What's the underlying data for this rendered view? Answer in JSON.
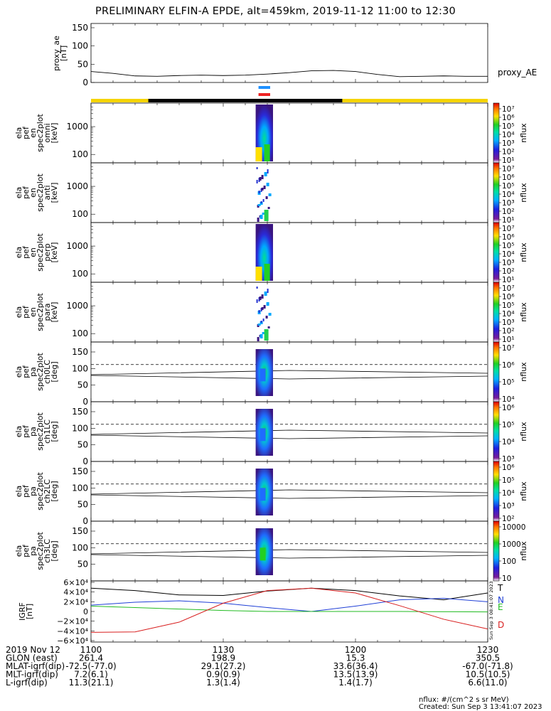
{
  "title": "PRELIMINARY ELFIN-A EPDE, alt=459km, 2019-11-12 11:00 to 12:30",
  "ae_panel": {
    "ylabel": [
      "proxy_ae",
      "[nT]"
    ],
    "legend": "proxy_AE",
    "yticks": [
      "150",
      "100",
      "50",
      "0"
    ]
  },
  "status_bars": {
    "top_colors": [
      "#1e90ff",
      "#ee2222"
    ],
    "track_colors": [
      "#f5d400",
      "#000000"
    ]
  },
  "energy_panels": [
    {
      "ylabel": [
        "ela",
        "pef",
        "en",
        "spec2plot",
        "omni",
        "[keV]"
      ],
      "yticks": [
        "1000",
        "100"
      ],
      "colorbar_ticks": [
        "10⁷",
        "10⁶",
        "10⁵",
        "10⁴",
        "10³",
        "10²",
        "10¹"
      ],
      "zlabel": "nflux"
    },
    {
      "ylabel": [
        "ela",
        "pef",
        "en",
        "spec2plot",
        "anti",
        "[keV]"
      ],
      "yticks": [
        "1000",
        "100"
      ],
      "colorbar_ticks": [
        "10⁷",
        "10⁶",
        "10⁵",
        "10⁴",
        "10³",
        "10²",
        "10¹"
      ],
      "zlabel": "nflux"
    },
    {
      "ylabel": [
        "ela",
        "pef",
        "en",
        "spec2plot",
        "perp",
        "[keV]"
      ],
      "yticks": [
        "1000",
        "100"
      ],
      "colorbar_ticks": [
        "10⁷",
        "10⁶",
        "10⁵",
        "10⁴",
        "10³",
        "10²",
        "10¹"
      ],
      "zlabel": "nflux"
    },
    {
      "ylabel": [
        "ela",
        "pef",
        "en",
        "spec2plot",
        "para",
        "[keV]"
      ],
      "yticks": [
        "1000",
        "100"
      ],
      "colorbar_ticks": [
        "10⁷",
        "10⁶",
        "10⁵",
        "10⁴",
        "10³",
        "10²",
        "10¹"
      ],
      "zlabel": "nflux"
    }
  ],
  "pa_panels": [
    {
      "ylabel": [
        "ela",
        "pef",
        "pa",
        "spec2plot",
        "ch0LC",
        "[deg]"
      ],
      "yticks": [
        "150",
        "100",
        "50",
        "0"
      ],
      "colorbar_ticks": [
        "10⁷",
        "10⁶",
        "10⁵",
        "10⁴"
      ],
      "zlabel": "nflux"
    },
    {
      "ylabel": [
        "ela",
        "pef",
        "pa",
        "spec2plot",
        "ch1LC",
        "[deg]"
      ],
      "yticks": [
        "150",
        "100",
        "50",
        "0"
      ],
      "colorbar_ticks": [
        "10⁶",
        "10⁵",
        "10⁴",
        "10³"
      ],
      "zlabel": "nflux"
    },
    {
      "ylabel": [
        "ela",
        "pef",
        "pa",
        "spec2plot",
        "ch2LC",
        "[deg]"
      ],
      "yticks": [
        "150",
        "100",
        "50",
        "0"
      ],
      "colorbar_ticks": [
        "10⁶",
        "10⁵",
        "10⁴",
        "10³",
        "10²"
      ],
      "zlabel": "nflux"
    },
    {
      "ylabel": [
        "ela",
        "pef",
        "pa",
        "spec2plot",
        "ch3LC",
        "[deg]"
      ],
      "yticks": [
        "150",
        "100",
        "50"
      ],
      "colorbar_ticks": [
        "10000",
        "1000",
        "100",
        "10"
      ],
      "zlabel": "nflux"
    }
  ],
  "igrf_panel": {
    "ylabel": [
      "IGRF",
      "[nT]"
    ],
    "yticks": [
      "6×10⁴",
      "4×10⁴",
      "2×10⁴",
      "0",
      "−2×10⁴",
      "−4×10⁴",
      "−6×10⁴"
    ],
    "legend": [
      {
        "label": "T",
        "color": "#000000"
      },
      {
        "label": "N",
        "color": "#1f3fd6"
      },
      {
        "label": "E",
        "color": "#22bb22"
      },
      {
        "label": "D",
        "color": "#d81e1e"
      }
    ],
    "side_text": "Sun Sep  3 08:41:07 2023"
  },
  "xaxis": {
    "date_label": "2019 Nov 12",
    "row_labels": [
      "GLON (east)",
      "MLAT-igrf(dip)",
      "MLT-igrf(dip)",
      "L-igrf(dip)"
    ],
    "columns": [
      {
        "time": "1100",
        "values": [
          "261.4",
          "-72.5(-77.0)",
          "7.2(6.1)",
          "11.3(21.1)"
        ]
      },
      {
        "time": "1130",
        "values": [
          "198.9",
          "29.1(27.2)",
          "0.9(0.9)",
          "1.3(1.4)"
        ]
      },
      {
        "time": "1200",
        "values": [
          "15.3",
          "33.6(36.4)",
          "13.5(13.9)",
          "1.4(1.7)"
        ]
      },
      {
        "time": "1230",
        "values": [
          "350.5",
          "-67.0(-71.8)",
          "10.5(10.5)",
          "6.6(11.0)"
        ]
      }
    ]
  },
  "footer": {
    "units": "nflux: #/(cm^2 s sr MeV)",
    "created": "Created: Sun Sep  3 13:41:07 2023"
  },
  "chart_data": {
    "type": "heatmap",
    "x_range": [
      "11:00",
      "12:30"
    ],
    "time_axis_ticks": [
      "1100",
      "1130",
      "1200",
      "1230"
    ],
    "proxy_ae": {
      "units": "nT",
      "ylim": [
        0,
        150
      ],
      "times": [
        "11:00",
        "11:05",
        "11:10",
        "11:15",
        "11:20",
        "11:25",
        "11:30",
        "11:35",
        "11:40",
        "11:45",
        "11:50",
        "11:55",
        "12:00",
        "12:05",
        "12:10",
        "12:15",
        "12:20",
        "12:25",
        "12:30"
      ],
      "values": [
        30,
        25,
        18,
        17,
        19,
        20,
        19,
        20,
        23,
        27,
        32,
        33,
        30,
        22,
        16,
        17,
        18,
        17,
        17
      ]
    },
    "science_interval": {
      "start": "11:38",
      "end": "11:40"
    },
    "energy_spectrograms": {
      "ylim_keV": [
        50,
        7000
      ],
      "log_y": true,
      "zlim": [
        10,
        10000000
      ],
      "active_interval": [
        "11:38",
        "11:40"
      ],
      "panels": [
        "omni",
        "anti",
        "perp",
        "para"
      ]
    },
    "pitch_angle_spectrograms": {
      "ylim_deg": [
        0,
        180
      ],
      "active_interval": [
        "11:38",
        "11:40"
      ],
      "reference_lines_deg": [
        75,
        90,
        112
      ],
      "panels": [
        "ch0LC",
        "ch1LC",
        "ch2LC",
        "ch3LC"
      ]
    },
    "igrf": {
      "units": "nT",
      "ylim": [
        -60000,
        60000
      ],
      "times": [
        "11:00",
        "11:10",
        "11:20",
        "11:30",
        "11:40",
        "11:50",
        "12:00",
        "12:10",
        "12:20",
        "12:30"
      ],
      "series": [
        {
          "name": "T",
          "values": [
            48000,
            43000,
            34000,
            33000,
            42000,
            48000,
            43000,
            32000,
            24000,
            38000
          ]
        },
        {
          "name": "N",
          "values": [
            13000,
            19000,
            22000,
            17000,
            8000,
            0,
            11000,
            24000,
            27000,
            20000
          ]
        },
        {
          "name": "E",
          "values": [
            11000,
            8000,
            5000,
            2000,
            0,
            0,
            0,
            0,
            -500,
            -1000
          ]
        },
        {
          "name": "D",
          "values": [
            -43000,
            -42000,
            -22000,
            17000,
            43000,
            48000,
            38000,
            12000,
            -16000,
            -36000
          ]
        }
      ]
    }
  }
}
